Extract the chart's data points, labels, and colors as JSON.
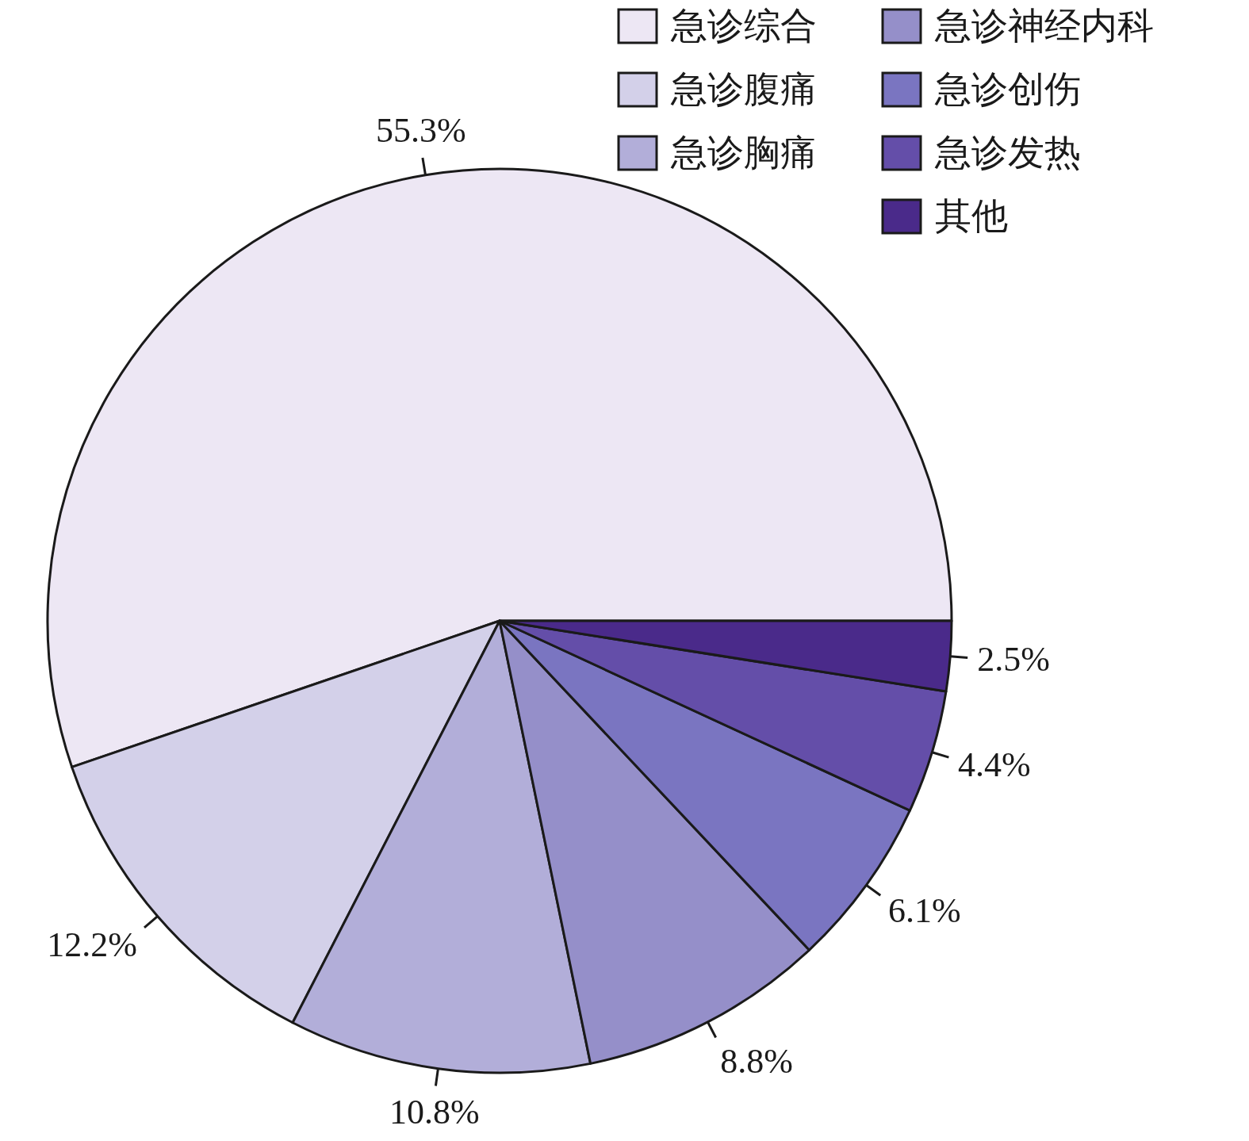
{
  "chart_data": {
    "type": "pie",
    "categories": [
      "急诊综合",
      "急诊腹痛",
      "急诊胸痛",
      "急诊神经内科",
      "急诊创伤",
      "急诊发热",
      "其他"
    ],
    "values": [
      55.3,
      12.2,
      10.8,
      8.8,
      6.1,
      4.4,
      2.5
    ],
    "value_labels": [
      "55.3%",
      "12.2%",
      "10.8%",
      "8.8%",
      "6.1%",
      "4.4%",
      "2.5%"
    ],
    "colors": [
      "#ede7f4",
      "#d3d0e9",
      "#b2aed9",
      "#958fc9",
      "#7a75c1",
      "#644ea9",
      "#4a2a8a"
    ],
    "legend": "top right"
  }
}
